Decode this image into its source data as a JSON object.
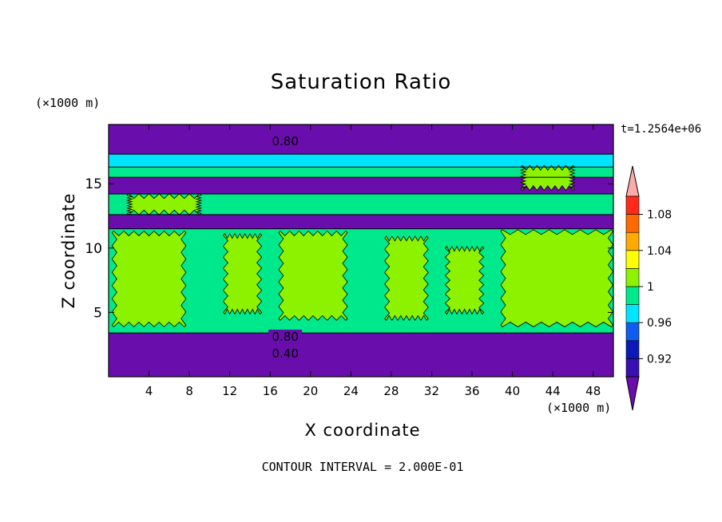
{
  "chart_data": {
    "type": "heatmap",
    "title": "Saturation Ratio",
    "xlabel": "X coordinate",
    "ylabel": "Z coordinate",
    "x_unit": "(×1000 m)",
    "y_unit": "(×1000 m)",
    "time_label": "t=1.2564e+06",
    "footer": "CONTOUR INTERVAL = 2.000E-01",
    "xlim": [
      0,
      50
    ],
    "ylim": [
      0,
      19.6
    ],
    "x_ticks": [
      4,
      8,
      12,
      16,
      20,
      24,
      28,
      32,
      36,
      40,
      44,
      48
    ],
    "y_ticks": [
      5,
      10,
      15
    ],
    "colorbar": {
      "labels": [
        "0.92",
        "0.96",
        "1",
        "1.04",
        "1.08"
      ],
      "label_values": [
        0.92,
        0.96,
        1.0,
        1.04,
        1.08
      ],
      "boundaries": [
        0.9,
        0.92,
        0.94,
        0.96,
        0.98,
        1.0,
        1.02,
        1.04,
        1.06,
        1.08,
        1.1
      ],
      "colors": [
        "#6a0dad",
        "#3a0fb2",
        "#0a1ab8",
        "#0f5cf0",
        "#00e5ff",
        "#00e88c",
        "#8cf200",
        "#ffff00",
        "#ffaa00",
        "#ff6a00",
        "#ff2a1a",
        "#ffaaaa"
      ],
      "extends": "both"
    },
    "contour_labels": [
      {
        "text": "0.80",
        "x": 17.5,
        "z": 18.3
      },
      {
        "text": "0.80",
        "x": 17.5,
        "z": 3.1
      },
      {
        "text": "0.40",
        "x": 17.5,
        "z": 1.8
      }
    ],
    "bands": [
      {
        "value": 0.88,
        "z_bottom": 0,
        "z_top": 3.4
      },
      {
        "value": 0.99,
        "z_bottom": 3.4,
        "z_top": 11.5
      },
      {
        "value": 0.88,
        "z_bottom": 11.5,
        "z_top": 12.6
      },
      {
        "value": 0.99,
        "z_bottom": 12.6,
        "z_top": 14.2
      },
      {
        "value": 0.88,
        "z_bottom": 14.2,
        "z_top": 15.5
      },
      {
        "value": 0.99,
        "z_bottom": 15.5,
        "z_top": 16.3
      },
      {
        "value": 0.97,
        "z_bottom": 16.3,
        "z_top": 17.3
      },
      {
        "value": 0.88,
        "z_bottom": 17.3,
        "z_top": 19.6
      }
    ],
    "regions_value_1": [
      {
        "x": [
          0.5,
          7.5
        ],
        "z": [
          4,
          11.2
        ]
      },
      {
        "x": [
          11.5,
          15
        ],
        "z": [
          5,
          11
        ]
      },
      {
        "x": [
          17,
          23.5
        ],
        "z": [
          4.5,
          11.2
        ]
      },
      {
        "x": [
          27.5,
          31.5
        ],
        "z": [
          4.5,
          10.8
        ]
      },
      {
        "x": [
          33.5,
          37
        ],
        "z": [
          5,
          10
        ]
      },
      {
        "x": [
          39,
          49.8
        ],
        "z": [
          4,
          11.3
        ]
      },
      {
        "x": [
          2,
          9
        ],
        "z": [
          12.7,
          14.1
        ]
      },
      {
        "x": [
          41,
          46
        ],
        "z": [
          14.6,
          16.3
        ]
      }
    ]
  }
}
